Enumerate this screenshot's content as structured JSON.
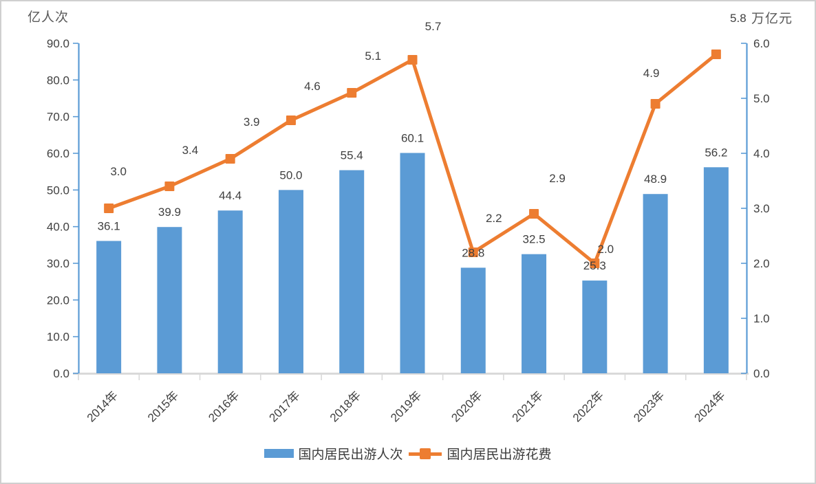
{
  "chart_data": {
    "type": "combo",
    "title": "",
    "categories": [
      "2014年",
      "2015年",
      "2016年",
      "2017年",
      "2018年",
      "2019年",
      "2020年",
      "2021年",
      "2022年",
      "2023年",
      "2024年"
    ],
    "series": [
      {
        "name": "国内居民出游人次",
        "type": "bar",
        "axis": "left",
        "color": "#5B9BD5",
        "values": [
          36.1,
          39.9,
          44.4,
          50.0,
          55.4,
          60.1,
          28.8,
          32.5,
          25.3,
          48.9,
          56.2
        ],
        "label_decimals": 1
      },
      {
        "name": "国内居民出游花费",
        "type": "line",
        "axis": "right",
        "color": "#ED7D31",
        "values": [
          3.0,
          3.4,
          3.9,
          4.6,
          5.1,
          5.7,
          2.2,
          2.9,
          2.0,
          4.9,
          5.8
        ],
        "label_decimals": 1,
        "label_offsets": [
          [
            14,
            -54
          ],
          [
            30,
            -53
          ],
          [
            31,
            -54
          ],
          [
            31,
            -50
          ],
          [
            31,
            -54
          ],
          [
            30,
            -49
          ],
          [
            30,
            -50
          ],
          [
            34,
            -52
          ],
          [
            16,
            -21
          ],
          [
            -6,
            -45
          ],
          [
            32,
            -53
          ]
        ]
      }
    ],
    "left_axis": {
      "title": "亿人次",
      "min": 0,
      "max": 90,
      "step": 10,
      "tick_decimals": 1
    },
    "right_axis": {
      "title": "万亿元",
      "min": 0,
      "max": 6,
      "step": 1,
      "tick_decimals": 1
    },
    "x_axis": {
      "label_rotation_deg": -45
    },
    "legend_position": "bottom",
    "grid": false,
    "data_labels": true,
    "colors": {
      "bar": "#5B9BD5",
      "line": "#ED7D31",
      "value_axis_line": "#5B9BD5",
      "category_axis_line": "#D9D9D9",
      "data_label_text": "#404040",
      "tick_label_text": "#404040",
      "axis_title_text": "#595959",
      "legend_text": "#3b3b3b"
    }
  }
}
